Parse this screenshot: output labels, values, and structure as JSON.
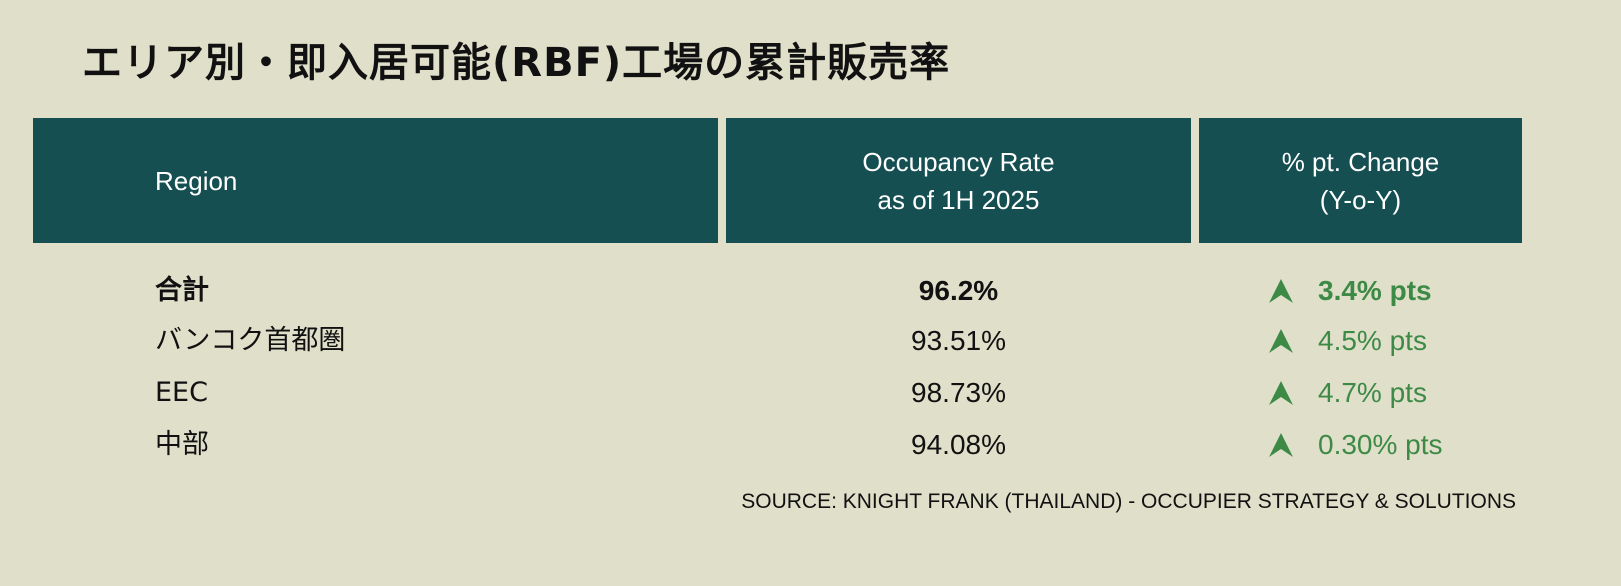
{
  "title": "エリア別・即入居可能(RBF)工場の累計販売率",
  "table": {
    "headers": [
      [
        "Region"
      ],
      [
        "Occupancy Rate",
        "as of 1H 2025"
      ],
      [
        "% pt. Change",
        "(Y-o-Y)"
      ]
    ],
    "rows": [
      [
        "合計",
        "96.2%",
        "3.4% pts"
      ],
      [
        "バンコク首都圏",
        "93.51%",
        "4.5% pts"
      ],
      [
        "EEC",
        "98.73%",
        "4.7% pts"
      ],
      [
        "中部",
        "94.08%",
        "0.30% pts"
      ]
    ]
  },
  "source": "SOURCE: KNIGHT FRANK (THAILAND) - OCCUPIER STRATEGY & SOLUTIONS"
}
